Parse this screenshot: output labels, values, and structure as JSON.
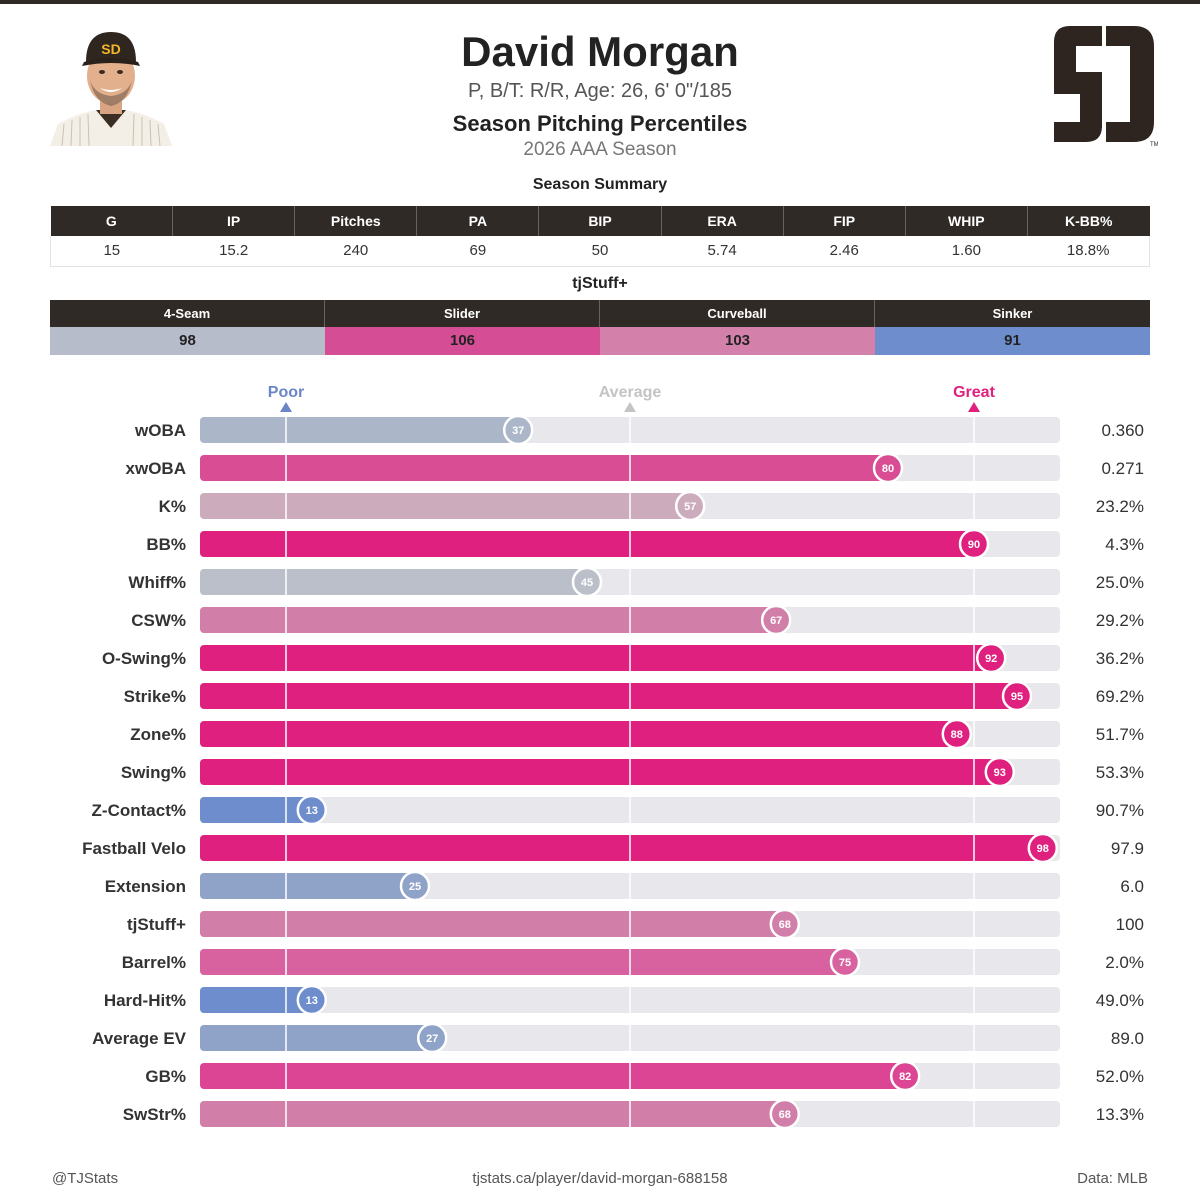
{
  "header": {
    "name": "David Morgan",
    "bio": "P, B/T: R/R, Age: 26, 6' 0\"/185",
    "subtitle": "Season Pitching Percentiles",
    "season": "2026 AAA Season"
  },
  "summary": {
    "title": "Season Summary",
    "columns": [
      "G",
      "IP",
      "Pitches",
      "PA",
      "BIP",
      "ERA",
      "FIP",
      "WHIP",
      "K-BB%"
    ],
    "values": [
      "15",
      "15.2",
      "240",
      "69",
      "50",
      "5.74",
      "2.46",
      "1.60",
      "18.8%"
    ]
  },
  "stuff": {
    "title": "tjStuff+",
    "pitches": [
      {
        "name": "4-Seam",
        "value": "98",
        "color": "#b6bcca"
      },
      {
        "name": "Slider",
        "value": "106",
        "color": "#d54d94"
      },
      {
        "name": "Curveball",
        "value": "103",
        "color": "#d381ab"
      },
      {
        "name": "Sinker",
        "value": "91",
        "color": "#6d8dcc"
      }
    ]
  },
  "colors": {
    "dark": "#2f2a26",
    "poor": "#6a86c6",
    "average": "#c4c4c4",
    "great": "#e0207e",
    "track": "#e7e7ec"
  },
  "chart_data": {
    "type": "bar",
    "markers": [
      {
        "label": "Poor",
        "percentile": 10,
        "color": "#6a86c6"
      },
      {
        "label": "Average",
        "percentile": 50,
        "color": "#c4c4c4"
      },
      {
        "label": "Great",
        "percentile": 90,
        "color": "#e0207e"
      }
    ],
    "xlim": [
      0,
      100
    ],
    "categories": [
      "wOBA",
      "xwOBA",
      "K%",
      "BB%",
      "Whiff%",
      "CSW%",
      "O-Swing%",
      "Strike%",
      "Zone%",
      "Swing%",
      "Z-Contact%",
      "Fastball Velo",
      "Extension",
      "tjStuff+",
      "Barrel%",
      "Hard-Hit%",
      "Average EV",
      "GB%",
      "SwStr%"
    ],
    "percentiles": [
      37,
      80,
      57,
      90,
      45,
      67,
      92,
      95,
      88,
      93,
      13,
      98,
      25,
      68,
      75,
      13,
      27,
      82,
      68
    ],
    "stat_values": [
      "0.360",
      "0.271",
      "23.2%",
      "4.3%",
      "25.0%",
      "29.2%",
      "36.2%",
      "69.2%",
      "51.7%",
      "53.3%",
      "90.7%",
      "97.9",
      "6.0",
      "100",
      "2.0%",
      "49.0%",
      "89.0",
      "52.0%",
      "13.3%"
    ],
    "colors": [
      "#abb7c9",
      "#d84d94",
      "#ccacbc",
      "#e0207e",
      "#babfca",
      "#d17fa9",
      "#e0207e",
      "#e0207e",
      "#e0207e",
      "#e0207e",
      "#6d8dcc",
      "#e0207e",
      "#8fa2c8",
      "#d17fa9",
      "#d8629f",
      "#6d8dcc",
      "#8fa2c8",
      "#dc4594",
      "#d17fa9"
    ]
  },
  "footer": {
    "left": "@TJStats",
    "center": "tjstats.ca/player/david-morgan-688158",
    "right": "Data: MLB"
  }
}
